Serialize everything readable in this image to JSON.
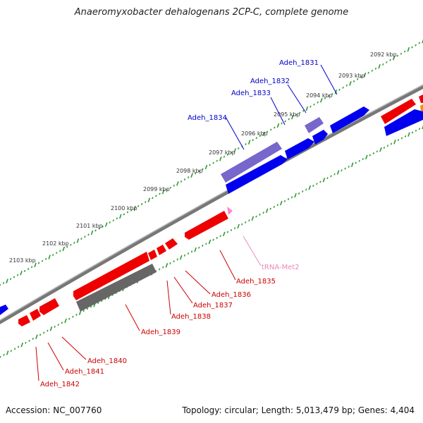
{
  "title": "Anaeromyxobacter dehalogenans 2CP-C, complete genome",
  "footer": {
    "accession": "Accession: NC_007760",
    "topology": "Topology: circular; Length: 5,013,479 bp; Genes: 4,404"
  },
  "colors": {
    "backbone": "#888888",
    "ticks": "#339933",
    "forward_gene": "#0000ee",
    "forward_gene_alt": "#7766cc",
    "reverse_gene": "#ee0000",
    "pseudo_gene": "#666666",
    "trna": "#ff88cc",
    "label_forward": "#0000cc",
    "label_reverse": "#cc0000",
    "label_trna": "#ee88bb",
    "kbp_label": "#333333"
  },
  "kbp_labels": [
    "2092 kbp",
    "2093 kbp",
    "2094 kbp",
    "2095 kbp",
    "2096 kbp",
    "2097 kbp",
    "2098 kbp",
    "2099 kbp",
    "2100 kbp",
    "2101 kbp",
    "2102 kbp",
    "2103 kbp"
  ],
  "forward_labels": [
    "Adeh_1831",
    "Adeh_1832",
    "Adeh_1833",
    "Adeh_1834"
  ],
  "reverse_labels": [
    "Adeh_1835",
    "Adeh_1836",
    "Adeh_1837",
    "Adeh_1838",
    "Adeh_1839",
    "Adeh_1840",
    "Adeh_1841",
    "Adeh_1842"
  ],
  "trna_label": "tRNA-Met2"
}
